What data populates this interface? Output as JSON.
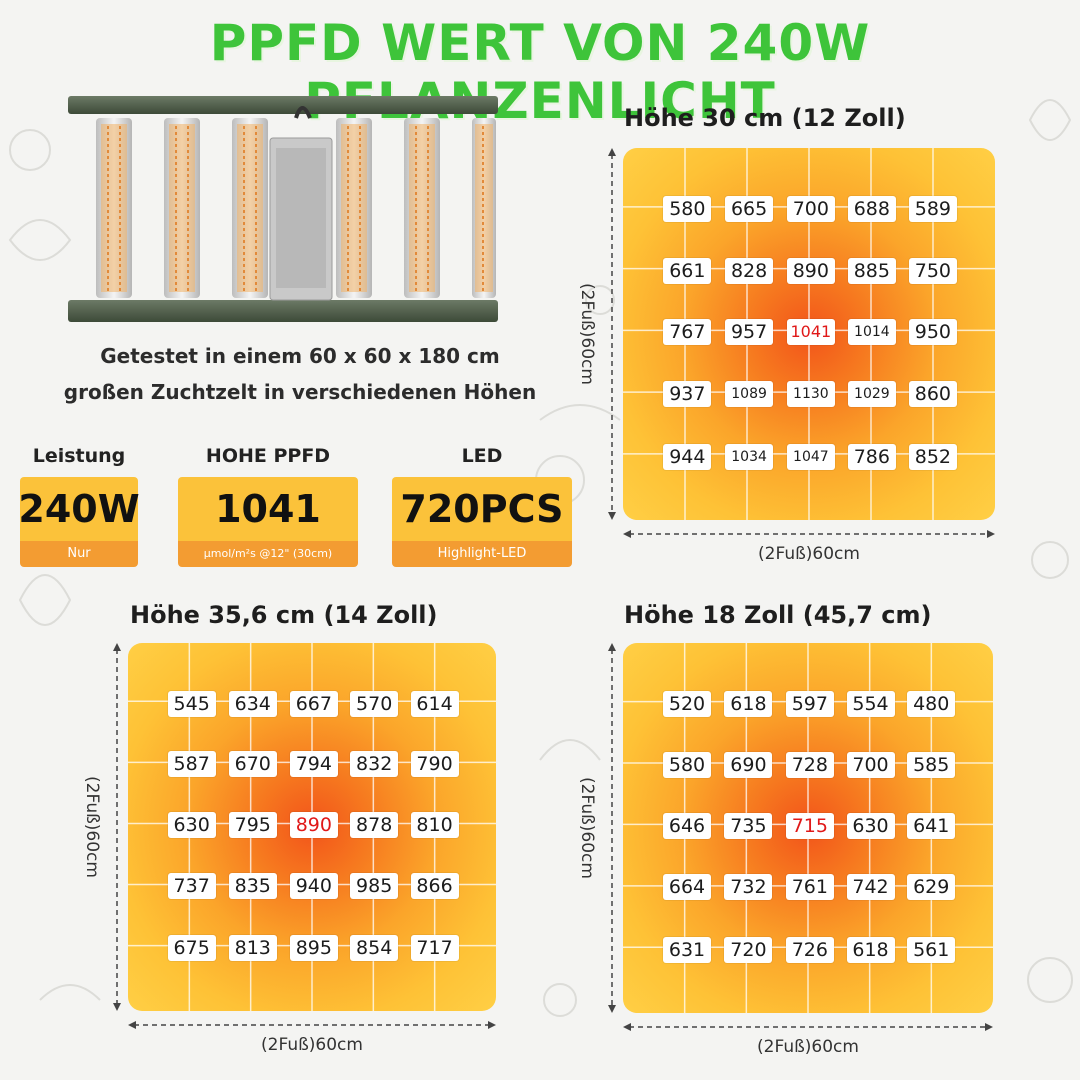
{
  "title": "PPFD WERT VON 240W PFLANZENLICHT",
  "caption": {
    "line1": "Getestet in einem 60 x 60 x 180 cm",
    "line2": "großen Zuchtzelt in verschiedenen Höhen"
  },
  "specs": [
    {
      "label": "Leistung",
      "value": "240W",
      "sub": "Nur"
    },
    {
      "label": "HOHE PPFD",
      "value": "1041",
      "sub": "μmol/m²s @12\"  (30cm)"
    },
    {
      "label": "LED",
      "value": "720PCS",
      "sub": "Highlight-LED"
    }
  ],
  "dimension_label": "(2Fuß)60cm",
  "panels": [
    {
      "title": "Höhe 30 cm (12 Zoll)",
      "peak": [
        2,
        2
      ],
      "rows": [
        [
          "580",
          "665",
          "700",
          "688",
          "589"
        ],
        [
          "661",
          "828",
          "890",
          "885",
          "750"
        ],
        [
          "767",
          "957",
          "1041",
          "1014",
          "950"
        ],
        [
          "937",
          "1089",
          "1130",
          "1029",
          "860"
        ],
        [
          "944",
          "1034",
          "1047",
          "786",
          "852"
        ]
      ]
    },
    {
      "title": "Höhe 35,6 cm (14 Zoll)",
      "peak": [
        2,
        2
      ],
      "rows": [
        [
          "545",
          "634",
          "667",
          "570",
          "614"
        ],
        [
          "587",
          "670",
          "794",
          "832",
          "790"
        ],
        [
          "630",
          "795",
          "890",
          "878",
          "810"
        ],
        [
          "737",
          "835",
          "940",
          "985",
          "866"
        ],
        [
          "675",
          "813",
          "895",
          "854",
          "717"
        ]
      ]
    },
    {
      "title": "Höhe 18 Zoll (45,7 cm)",
      "peak": [
        2,
        2
      ],
      "rows": [
        [
          "520",
          "618",
          "597",
          "554",
          "480"
        ],
        [
          "580",
          "690",
          "728",
          "700",
          "585"
        ],
        [
          "646",
          "735",
          "715",
          "630",
          "641"
        ],
        [
          "664",
          "732",
          "761",
          "742",
          "629"
        ],
        [
          "631",
          "720",
          "726",
          "618",
          "561"
        ]
      ]
    }
  ],
  "colors": {
    "title_green": "#3ec43a",
    "spec_yellow": "#fbc23a",
    "spec_orange": "#f39c32",
    "peak_red": "#e01818"
  }
}
